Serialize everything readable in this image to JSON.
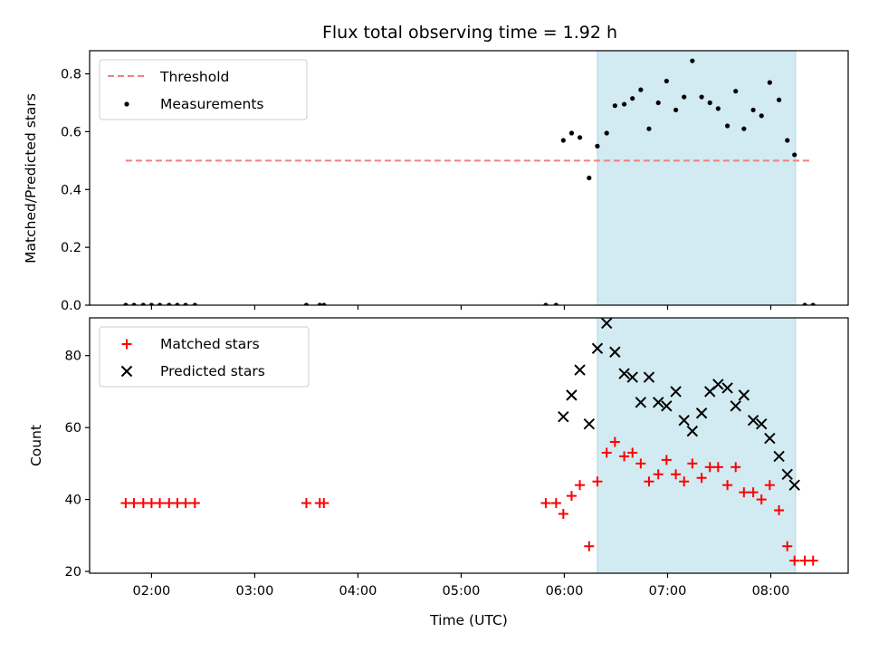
{
  "chart_data": {
    "title": "Flux total observing time = 1.92 h",
    "xlabel": "Time (UTC)",
    "x_units": "hours UTC",
    "x_ticks": [
      {
        "value": 2,
        "label": "02:00"
      },
      {
        "value": 3,
        "label": "03:00"
      },
      {
        "value": 4,
        "label": "04:00"
      },
      {
        "value": 5,
        "label": "05:00"
      },
      {
        "value": 6,
        "label": "06:00"
      },
      {
        "value": 7,
        "label": "07:00"
      },
      {
        "value": 8,
        "label": "08:00"
      }
    ],
    "xlim": [
      1.4,
      8.75
    ],
    "shaded_span": {
      "x_start": 6.32,
      "x_end": 8.24,
      "color": "#add8e6"
    },
    "panels": [
      {
        "type": "scatter",
        "ylabel": "Matched/Predicted stars",
        "ylim": [
          0,
          0.88
        ],
        "y_ticks": [
          {
            "value": 0.0,
            "label": "0.0"
          },
          {
            "value": 0.2,
            "label": "0.2"
          },
          {
            "value": 0.4,
            "label": "0.4"
          },
          {
            "value": 0.6,
            "label": "0.6"
          },
          {
            "value": 0.8,
            "label": "0.8"
          }
        ],
        "legend_position": "top-left",
        "threshold": {
          "name": "Threshold",
          "value": 0.5,
          "x_start": 1.75,
          "x_end": 8.38,
          "color": "#f08080"
        },
        "series": [
          {
            "name": "Measurements",
            "marker": "dot",
            "color": "#000000",
            "points": [
              [
                1.75,
                0
              ],
              [
                1.83,
                0
              ],
              [
                1.92,
                0
              ],
              [
                2.0,
                0
              ],
              [
                2.08,
                0
              ],
              [
                2.17,
                0
              ],
              [
                2.25,
                0
              ],
              [
                2.33,
                0
              ],
              [
                2.42,
                0
              ],
              [
                3.5,
                0
              ],
              [
                3.63,
                0
              ],
              [
                3.67,
                0
              ],
              [
                5.82,
                0
              ],
              [
                5.92,
                0
              ],
              [
                5.99,
                0.57
              ],
              [
                6.07,
                0.595
              ],
              [
                6.15,
                0.58
              ],
              [
                6.24,
                0.44
              ],
              [
                6.32,
                0.55
              ],
              [
                6.41,
                0.595
              ],
              [
                6.49,
                0.69
              ],
              [
                6.58,
                0.695
              ],
              [
                6.66,
                0.715
              ],
              [
                6.74,
                0.745
              ],
              [
                6.82,
                0.61
              ],
              [
                6.91,
                0.7
              ],
              [
                6.99,
                0.775
              ],
              [
                7.08,
                0.675
              ],
              [
                7.16,
                0.72
              ],
              [
                7.24,
                0.845
              ],
              [
                7.33,
                0.72
              ],
              [
                7.41,
                0.7
              ],
              [
                7.49,
                0.68
              ],
              [
                7.58,
                0.62
              ],
              [
                7.66,
                0.74
              ],
              [
                7.74,
                0.61
              ],
              [
                7.83,
                0.675
              ],
              [
                7.91,
                0.655
              ],
              [
                7.99,
                0.77
              ],
              [
                8.08,
                0.71
              ],
              [
                8.16,
                0.57
              ],
              [
                8.23,
                0.52
              ],
              [
                8.33,
                0
              ],
              [
                8.41,
                0
              ]
            ]
          }
        ]
      },
      {
        "type": "scatter",
        "ylabel": "Count",
        "ylim": [
          19.5,
          90.5
        ],
        "y_ticks": [
          {
            "value": 20,
            "label": "20"
          },
          {
            "value": 40,
            "label": "40"
          },
          {
            "value": 60,
            "label": "60"
          },
          {
            "value": 80,
            "label": "80"
          }
        ],
        "legend_position": "top-left",
        "series": [
          {
            "name": "Matched stars",
            "marker": "plus",
            "color": "#ff0000",
            "points": [
              [
                1.75,
                39
              ],
              [
                1.83,
                39
              ],
              [
                1.92,
                39
              ],
              [
                2.0,
                39
              ],
              [
                2.08,
                39
              ],
              [
                2.17,
                39
              ],
              [
                2.25,
                39
              ],
              [
                2.33,
                39
              ],
              [
                2.42,
                39
              ],
              [
                3.5,
                39
              ],
              [
                3.63,
                39
              ],
              [
                3.67,
                39
              ],
              [
                5.82,
                39
              ],
              [
                5.92,
                39
              ],
              [
                5.99,
                36
              ],
              [
                6.07,
                41
              ],
              [
                6.15,
                44
              ],
              [
                6.24,
                27
              ],
              [
                6.32,
                45
              ],
              [
                6.41,
                53
              ],
              [
                6.49,
                56
              ],
              [
                6.58,
                52
              ],
              [
                6.66,
                53
              ],
              [
                6.74,
                50
              ],
              [
                6.82,
                45
              ],
              [
                6.91,
                47
              ],
              [
                6.99,
                51
              ],
              [
                7.08,
                47
              ],
              [
                7.16,
                45
              ],
              [
                7.24,
                50
              ],
              [
                7.33,
                46
              ],
              [
                7.41,
                49
              ],
              [
                7.49,
                49
              ],
              [
                7.58,
                44
              ],
              [
                7.66,
                49
              ],
              [
                7.74,
                42
              ],
              [
                7.83,
                42
              ],
              [
                7.91,
                40
              ],
              [
                7.99,
                44
              ],
              [
                8.08,
                37
              ],
              [
                8.16,
                27
              ],
              [
                8.23,
                23
              ],
              [
                8.33,
                23
              ],
              [
                8.41,
                23
              ]
            ]
          },
          {
            "name": "Predicted stars",
            "marker": "x",
            "color": "#000000",
            "points": [
              [
                5.99,
                63
              ],
              [
                6.07,
                69
              ],
              [
                6.15,
                76
              ],
              [
                6.24,
                61
              ],
              [
                6.32,
                82
              ],
              [
                6.41,
                89
              ],
              [
                6.49,
                81
              ],
              [
                6.58,
                75
              ],
              [
                6.66,
                74
              ],
              [
                6.74,
                67
              ],
              [
                6.82,
                74
              ],
              [
                6.91,
                67
              ],
              [
                6.99,
                66
              ],
              [
                7.08,
                70
              ],
              [
                7.16,
                62
              ],
              [
                7.24,
                59
              ],
              [
                7.33,
                64
              ],
              [
                7.41,
                70
              ],
              [
                7.49,
                72
              ],
              [
                7.58,
                71
              ],
              [
                7.66,
                66
              ],
              [
                7.74,
                69
              ],
              [
                7.83,
                62
              ],
              [
                7.91,
                61
              ],
              [
                7.99,
                57
              ],
              [
                8.08,
                52
              ],
              [
                8.16,
                47
              ],
              [
                8.23,
                44
              ]
            ]
          }
        ]
      }
    ]
  }
}
